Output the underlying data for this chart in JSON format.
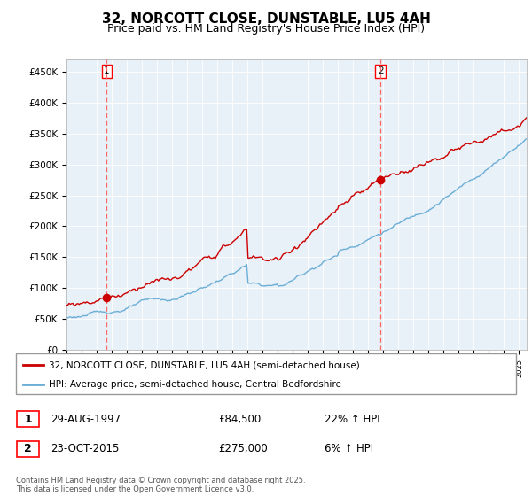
{
  "title": "32, NORCOTT CLOSE, DUNSTABLE, LU5 4AH",
  "subtitle": "Price paid vs. HM Land Registry's House Price Index (HPI)",
  "ylabel_ticks": [
    "£0",
    "£50K",
    "£100K",
    "£150K",
    "£200K",
    "£250K",
    "£300K",
    "£350K",
    "£400K",
    "£450K"
  ],
  "ytick_values": [
    0,
    50000,
    100000,
    150000,
    200000,
    250000,
    300000,
    350000,
    400000,
    450000
  ],
  "ylim": [
    0,
    470000
  ],
  "xlim_start": 1995.0,
  "xlim_end": 2025.5,
  "sale1": {
    "date": "29-AUG-1997",
    "year": 1997.67,
    "price": 84500,
    "label": "1"
  },
  "sale2": {
    "date": "23-OCT-2015",
    "year": 2015.81,
    "price": 275000,
    "label": "2"
  },
  "legend_line1": "32, NORCOTT CLOSE, DUNSTABLE, LU5 4AH (semi-detached house)",
  "legend_line2": "HPI: Average price, semi-detached house, Central Bedfordshire",
  "table_row1": [
    "1",
    "29-AUG-1997",
    "£84,500",
    "22% ↑ HPI"
  ],
  "table_row2": [
    "2",
    "23-OCT-2015",
    "£275,000",
    "6% ↑ HPI"
  ],
  "footer": "Contains HM Land Registry data © Crown copyright and database right 2025.\nThis data is licensed under the Open Government Licence v3.0.",
  "price_color": "#cc0000",
  "hpi_color": "#6baed6",
  "chart_bg": "#e8f0f8",
  "vline_color": "#ff6666",
  "background_color": "#ffffff",
  "grid_color": "#ffffff",
  "title_fontsize": 11,
  "subtitle_fontsize": 9
}
